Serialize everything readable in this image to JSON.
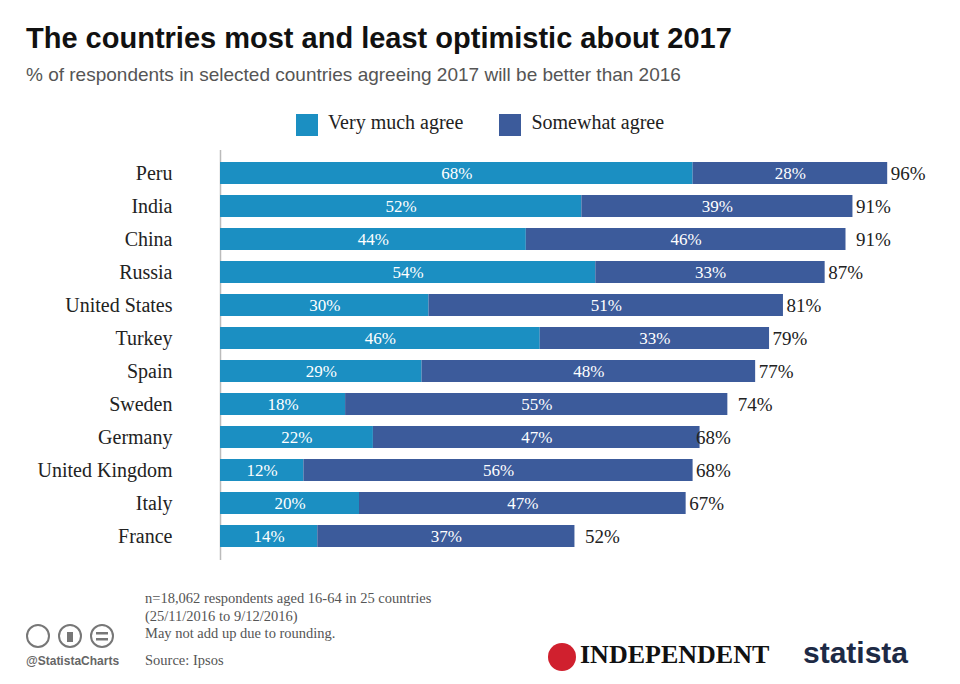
{
  "chart_data": {
    "type": "bar",
    "orientation": "horizontal",
    "stacked": true,
    "data_labels": true,
    "tick_labels": "y",
    "grid": false,
    "legend": "top",
    "title": "The countries most and least optimistic about 2017",
    "subtitle": "% of respondents in selected countries agreeing 2017 will be better than 2016",
    "categories": [
      "Peru",
      "India",
      "China",
      "Russia",
      "United States",
      "Turkey",
      "Spain",
      "Sweden",
      "Germany",
      "United Kingdom",
      "Italy",
      "France"
    ],
    "series": [
      {
        "name": "Very much agree",
        "color": "#1b8fc2",
        "values": [
          68,
          52,
          44,
          54,
          30,
          46,
          29,
          18,
          22,
          12,
          20,
          14
        ],
        "value_labels": [
          "68%",
          "52%",
          "44%",
          "54%",
          "30%",
          "46%",
          "29%",
          "18%",
          "22%",
          "12%",
          "20%",
          "14%"
        ]
      },
      {
        "name": "Somewhat agree",
        "color": "#3c5b9b",
        "values": [
          28,
          39,
          46,
          33,
          51,
          33,
          48,
          55,
          47,
          56,
          47,
          37
        ],
        "value_labels": [
          "28%",
          "39%",
          "46%",
          "33%",
          "51%",
          "33%",
          "48%",
          "55%",
          "47%",
          "56%",
          "47%",
          "37%"
        ]
      }
    ],
    "totals": [
      96,
      91,
      91,
      87,
      81,
      79,
      77,
      74,
      68,
      68,
      67,
      52
    ],
    "total_labels": [
      "96%",
      "91%",
      "91%",
      "87%",
      "81%",
      "79%",
      "77%",
      "74%",
      "68%",
      "68%",
      "67%",
      "52%"
    ],
    "xlim": [
      0,
      100
    ],
    "xticks": [],
    "notes": [
      "n=18,062 respondents aged 16-64 in 25 countries",
      "(25/11/2016 to 9/12/2016)",
      "May not add up due to rounding."
    ],
    "source": "Source: Ipsos",
    "credits": [
      "@StatistaCharts",
      "INDEPENDENT",
      "statista"
    ]
  }
}
